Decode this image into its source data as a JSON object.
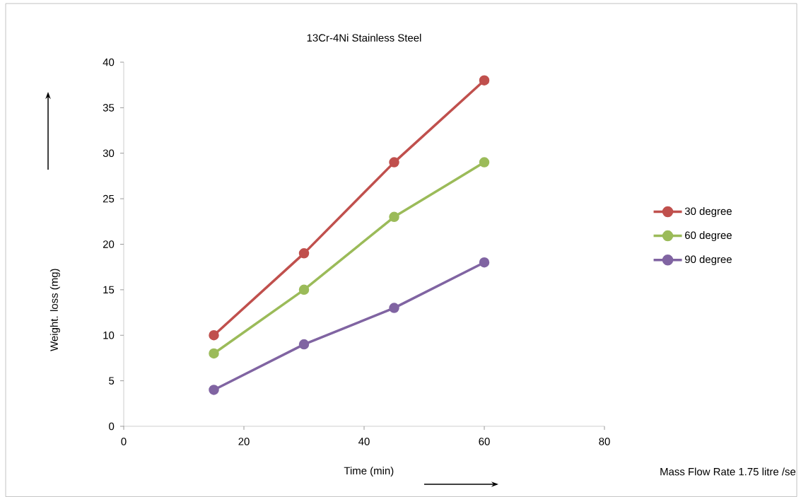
{
  "chart_data": {
    "type": "line",
    "title": "13Cr-4Ni Stainless Steel",
    "xlabel": "Time (min)",
    "ylabel": "Weight. loss (mg)",
    "annotations": [
      "Mass Flow Rate 1.75 litre /se"
    ],
    "x": [
      15,
      30,
      45,
      60
    ],
    "series": [
      {
        "name": "30 degree",
        "color": "#c0504d",
        "values": [
          10,
          19,
          29,
          38
        ]
      },
      {
        "name": "60 degree",
        "color": "#9bbb59",
        "values": [
          8,
          15,
          23,
          29
        ]
      },
      {
        "name": "90 degree",
        "color": "#8064a2",
        "values": [
          4,
          9,
          13,
          18
        ]
      }
    ],
    "xlim": [
      0,
      80
    ],
    "xticks": [
      0,
      20,
      40,
      60,
      80
    ],
    "ylim": [
      0,
      40
    ],
    "yticks": [
      0,
      5,
      10,
      15,
      20,
      25,
      30,
      35,
      40
    ],
    "grid": false,
    "legend": "right",
    "marker": "circle",
    "line_style": "solid"
  }
}
